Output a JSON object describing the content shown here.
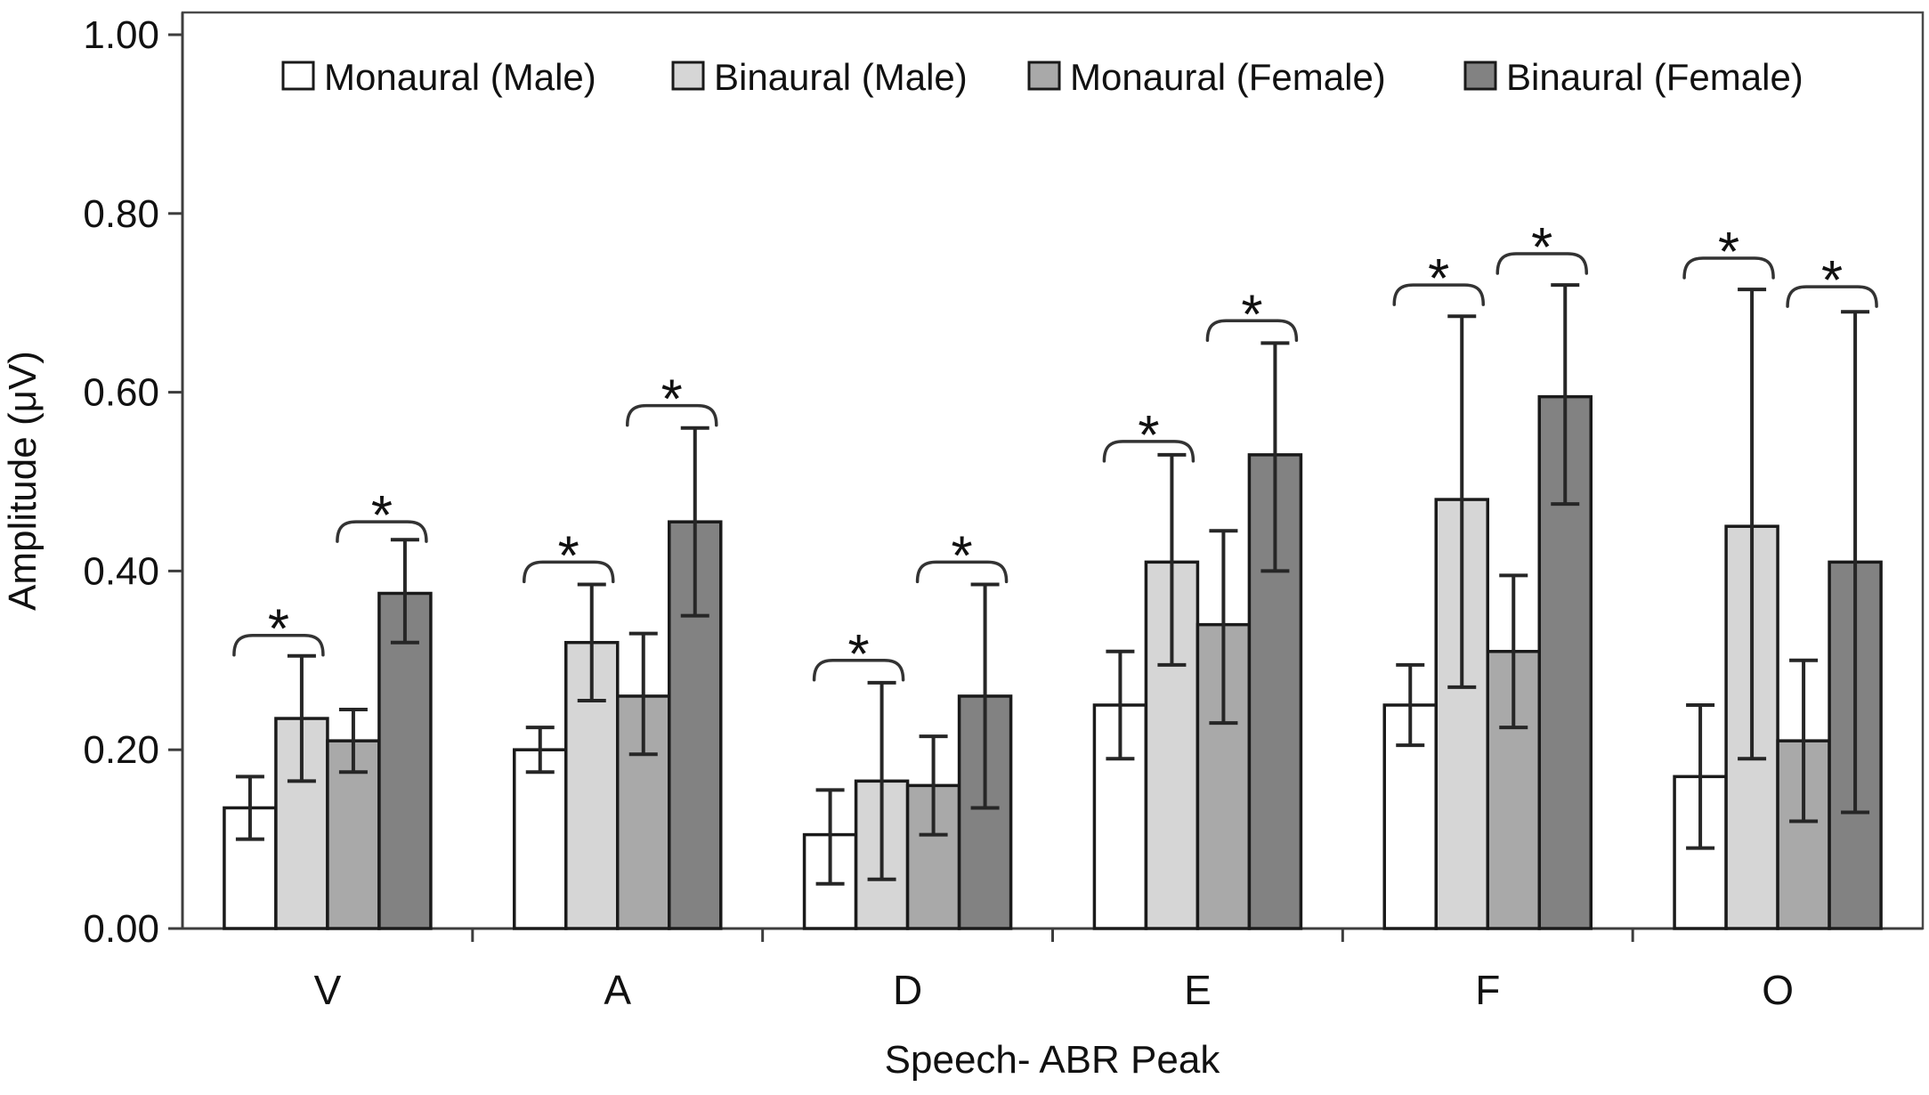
{
  "chart_data": {
    "type": "bar",
    "title": "",
    "xlabel": "Speech- ABR Peak",
    "ylabel": "Amplitude (μV)",
    "ylim": [
      0.0,
      1.0
    ],
    "y_tick_step": 0.2,
    "y_tick_labels": [
      "0.00",
      "0.20",
      "0.40",
      "0.60",
      "0.80",
      "1.00"
    ],
    "grid": false,
    "legend_position": "top",
    "categories": [
      "V",
      "A",
      "D",
      "E",
      "F",
      "O"
    ],
    "series": [
      {
        "name": "Monaural (Male)",
        "color": "#ffffff",
        "values": [
          0.135,
          0.2,
          0.105,
          0.25,
          0.25,
          0.17
        ],
        "error_low": [
          0.1,
          0.175,
          0.05,
          0.19,
          0.205,
          0.09
        ],
        "error_high": [
          0.17,
          0.225,
          0.155,
          0.31,
          0.295,
          0.25
        ]
      },
      {
        "name": "Binaural (Male)",
        "color": "#d6d6d6",
        "values": [
          0.235,
          0.32,
          0.165,
          0.41,
          0.48,
          0.45
        ],
        "error_low": [
          0.165,
          0.255,
          0.055,
          0.295,
          0.27,
          0.19
        ],
        "error_high": [
          0.305,
          0.385,
          0.275,
          0.53,
          0.685,
          0.715
        ]
      },
      {
        "name": "Monaural (Female)",
        "color": "#a9a9a9",
        "values": [
          0.21,
          0.26,
          0.16,
          0.34,
          0.31,
          0.21
        ],
        "error_low": [
          0.175,
          0.195,
          0.105,
          0.23,
          0.225,
          0.12
        ],
        "error_high": [
          0.245,
          0.33,
          0.215,
          0.445,
          0.395,
          0.3
        ]
      },
      {
        "name": "Binaural (Female)",
        "color": "#828282",
        "values": [
          0.375,
          0.455,
          0.26,
          0.53,
          0.595,
          0.41
        ],
        "error_low": [
          0.32,
          0.35,
          0.135,
          0.4,
          0.475,
          0.13
        ],
        "error_high": [
          0.435,
          0.56,
          0.385,
          0.655,
          0.72,
          0.69
        ]
      }
    ],
    "significance_brackets": [
      {
        "category": "V",
        "between": [
          "Monaural (Male)",
          "Binaural (Male)"
        ],
        "series_pair": [
          0,
          1
        ],
        "label": "*",
        "height": 0.328
      },
      {
        "category": "V",
        "between": [
          "Monaural (Female)",
          "Binaural (Female)"
        ],
        "series_pair": [
          2,
          3
        ],
        "label": "*",
        "height": 0.455
      },
      {
        "category": "A",
        "between": [
          "Monaural (Male)",
          "Binaural (Male)"
        ],
        "series_pair": [
          0,
          1
        ],
        "label": "*",
        "height": 0.41
      },
      {
        "category": "A",
        "between": [
          "Monaural (Female)",
          "Binaural (Female)"
        ],
        "series_pair": [
          2,
          3
        ],
        "label": "*",
        "height": 0.585
      },
      {
        "category": "D",
        "between": [
          "Monaural (Male)",
          "Binaural (Male)"
        ],
        "series_pair": [
          0,
          1
        ],
        "label": "*",
        "height": 0.3
      },
      {
        "category": "D",
        "between": [
          "Monaural (Female)",
          "Binaural (Female)"
        ],
        "series_pair": [
          2,
          3
        ],
        "label": "*",
        "height": 0.41
      },
      {
        "category": "E",
        "between": [
          "Monaural (Male)",
          "Binaural (Male)"
        ],
        "series_pair": [
          0,
          1
        ],
        "label": "*",
        "height": 0.545
      },
      {
        "category": "E",
        "between": [
          "Monaural (Female)",
          "Binaural (Female)"
        ],
        "series_pair": [
          2,
          3
        ],
        "label": "*",
        "height": 0.68
      },
      {
        "category": "F",
        "between": [
          "Monaural (Male)",
          "Binaural (Male)"
        ],
        "series_pair": [
          0,
          1
        ],
        "label": "*",
        "height": 0.72
      },
      {
        "category": "F",
        "between": [
          "Monaural (Female)",
          "Binaural (Female)"
        ],
        "series_pair": [
          2,
          3
        ],
        "label": "*",
        "height": 0.755
      },
      {
        "category": "O",
        "between": [
          "Monaural (Male)",
          "Binaural (Male)"
        ],
        "series_pair": [
          0,
          1
        ],
        "label": "*",
        "height": 0.75
      },
      {
        "category": "O",
        "between": [
          "Monaural (Female)",
          "Binaural (Female)"
        ],
        "series_pair": [
          2,
          3
        ],
        "label": "*",
        "height": 0.718
      }
    ],
    "colors": {
      "bar_outline": "#1a1a1a",
      "error_bar": "#262626",
      "bracket": "#333333",
      "axis": "#3d3d3d",
      "plot_border": "#4a4a4a"
    }
  }
}
